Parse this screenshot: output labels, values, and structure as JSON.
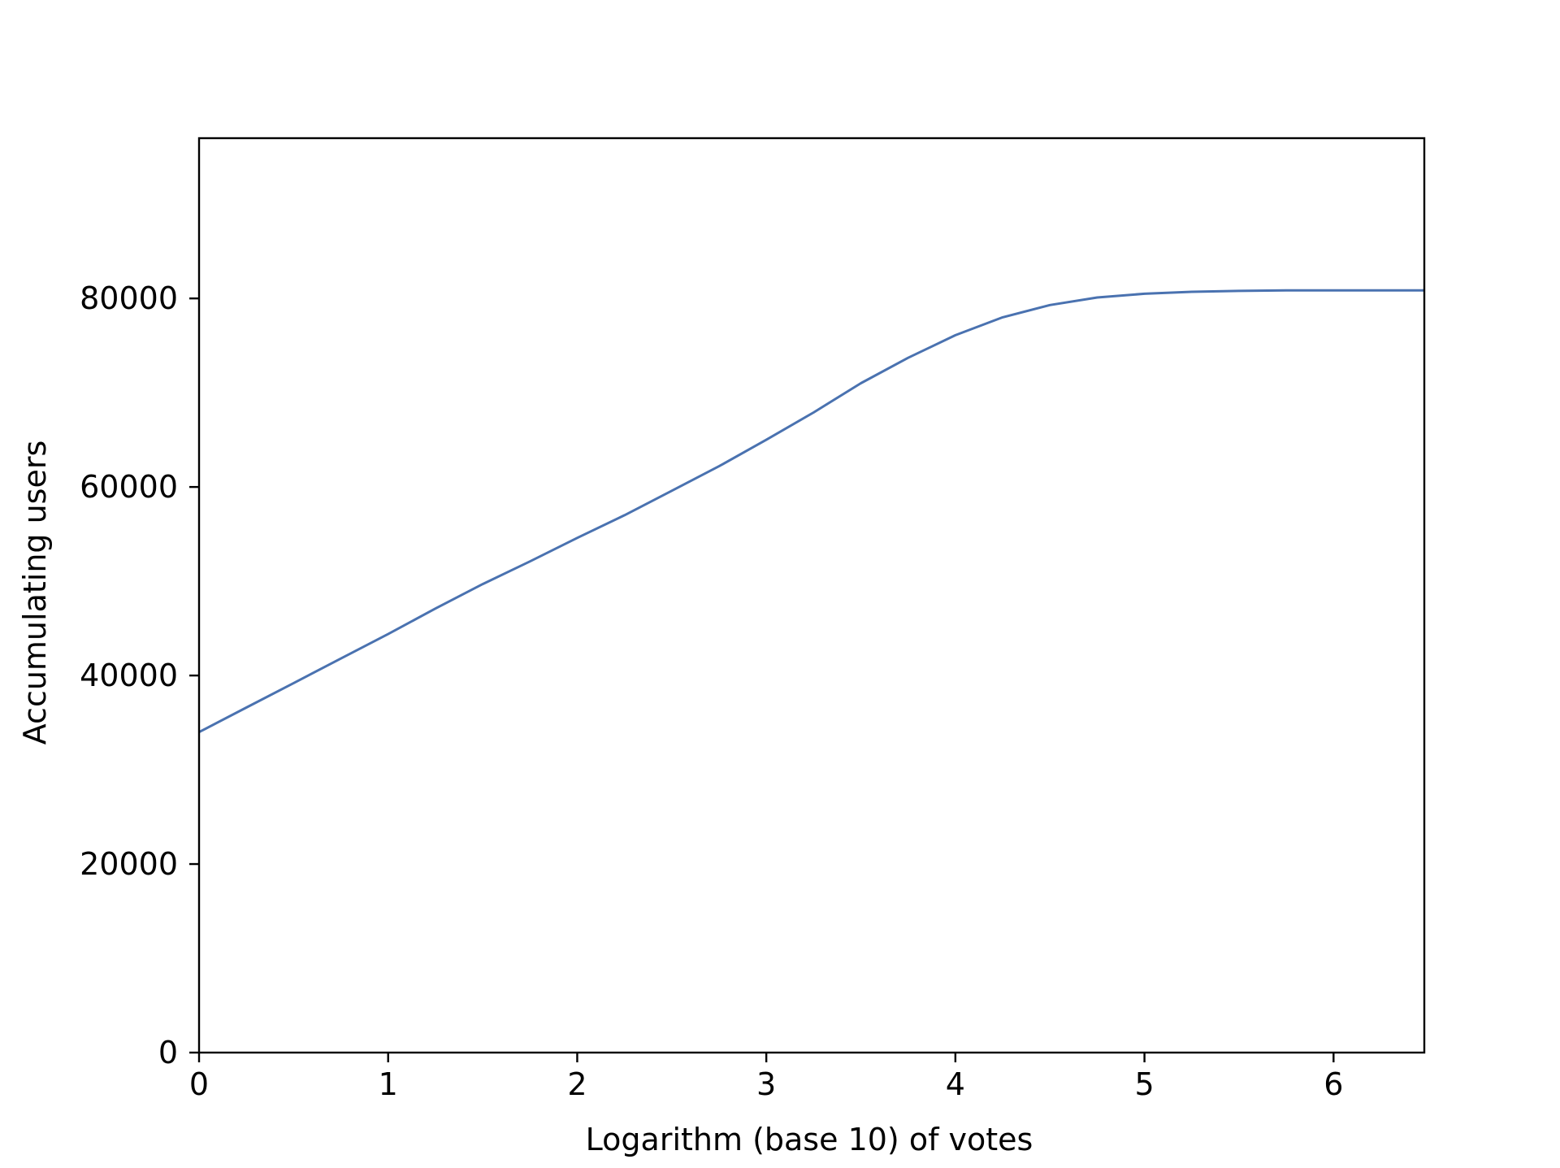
{
  "chart_data": {
    "type": "line",
    "title": "",
    "xlabel": "Logarithm (base 10) of votes",
    "ylabel": "Accumulating users",
    "xlim": [
      0,
      6.48
    ],
    "ylim": [
      0,
      97000
    ],
    "x_ticks": [
      0,
      1,
      2,
      3,
      4,
      5,
      6
    ],
    "x_tick_labels": [
      "0",
      "1",
      "2",
      "3",
      "4",
      "5",
      "6"
    ],
    "y_ticks": [
      0,
      20000,
      40000,
      60000,
      80000
    ],
    "y_tick_labels": [
      "0",
      "20000",
      "40000",
      "60000",
      "80000"
    ],
    "grid": false,
    "legend": "none",
    "series": [
      {
        "color": "#4a72b0",
        "x": [
          0,
          0.25,
          0.5,
          0.75,
          1.0,
          1.25,
          1.5,
          1.75,
          2.0,
          2.25,
          2.5,
          2.75,
          3.0,
          3.25,
          3.5,
          3.75,
          4.0,
          4.25,
          4.5,
          4.75,
          5.0,
          5.25,
          5.5,
          5.75,
          6.0,
          6.25,
          6.48
        ],
        "y": [
          34000,
          36600,
          39200,
          41800,
          44400,
          47100,
          49700,
          52100,
          54600,
          57000,
          59600,
          62200,
          65000,
          67900,
          71000,
          73700,
          76100,
          78000,
          79300,
          80100,
          80500,
          80700,
          80800,
          80850,
          80850,
          80850,
          80850
        ]
      }
    ]
  }
}
